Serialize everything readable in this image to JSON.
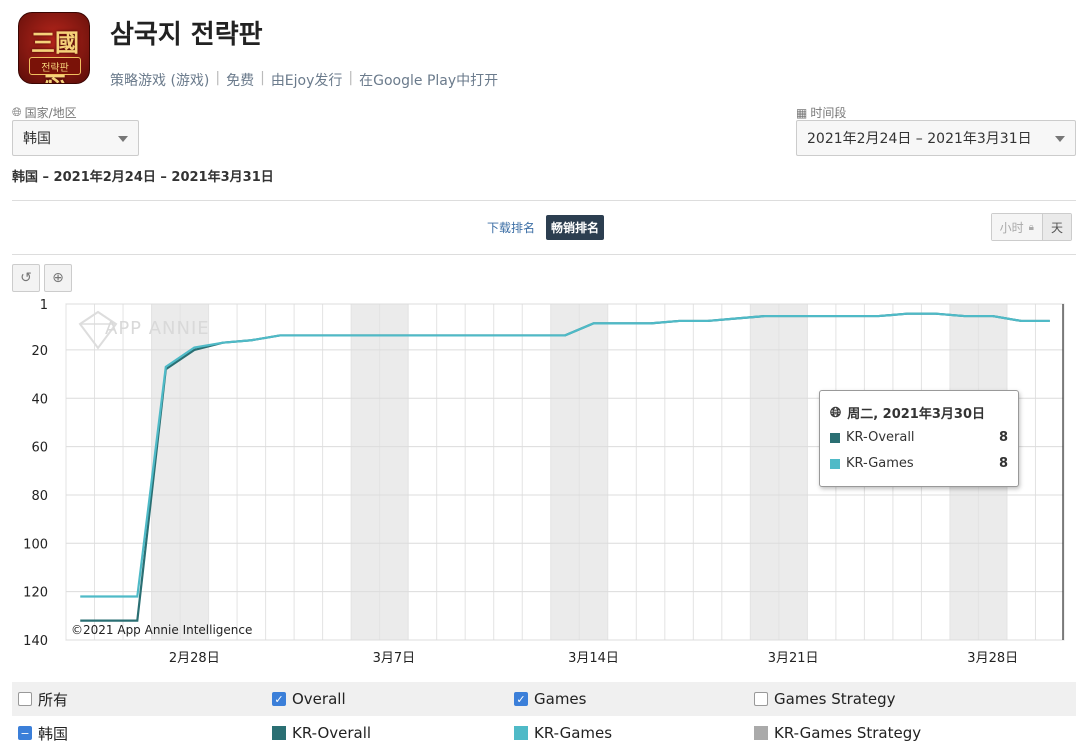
{
  "app": {
    "title": "삼국지 전략판",
    "icon_text": "三國志",
    "icon_sub": "전략판",
    "category": "策略游戏 (游戏)",
    "price": "免费",
    "publisher": "由Ejoy发行",
    "store_link": "在Google Play中打开",
    "separator": "|"
  },
  "filters": {
    "country_label": "国家/地区",
    "country_value": "韩国",
    "period_label": "时间段",
    "period_value": "2021年2月24日 – 2021年3月31日",
    "range_text": "韩国 – 2021年2月24日 – 2021年3月31日"
  },
  "tabs": {
    "download": "下载排名",
    "grossing": "畅销排名"
  },
  "granularity": {
    "hour": "小时",
    "day": "天"
  },
  "watermark": "APP ANNIE",
  "copyright": "©2021 App Annie Intelligence",
  "colors": {
    "overall": "#2a6f73",
    "games": "#4fbac7",
    "strategy": "#aaaaaa",
    "checkbox": "#3b7fd9"
  },
  "tooltip": {
    "date": "周二, 2021年3月30日",
    "rows": [
      {
        "name": "KR-Overall",
        "value": "8"
      },
      {
        "name": "KR-Games",
        "value": "8"
      }
    ]
  },
  "legend": {
    "row1": [
      "所有",
      "Overall",
      "Games",
      "Games Strategy"
    ],
    "row2": [
      "韩国",
      "KR-Overall",
      "KR-Games",
      "KR-Games Strategy"
    ]
  },
  "chart_data": {
    "type": "line",
    "ylim": [
      1,
      140
    ],
    "y_reversed": true,
    "y_ticks": [
      1,
      20,
      40,
      60,
      80,
      100,
      120,
      140
    ],
    "x_tick_labels": [
      "2月28日",
      "3月7日",
      "3月14日",
      "3月21日",
      "3月28日"
    ],
    "x": [
      "2021-02-24",
      "2021-02-25",
      "2021-02-26",
      "2021-02-27",
      "2021-02-28",
      "2021-03-01",
      "2021-03-02",
      "2021-03-03",
      "2021-03-04",
      "2021-03-05",
      "2021-03-06",
      "2021-03-07",
      "2021-03-08",
      "2021-03-09",
      "2021-03-10",
      "2021-03-11",
      "2021-03-12",
      "2021-03-13",
      "2021-03-14",
      "2021-03-15",
      "2021-03-16",
      "2021-03-17",
      "2021-03-18",
      "2021-03-19",
      "2021-03-20",
      "2021-03-21",
      "2021-03-22",
      "2021-03-23",
      "2021-03-24",
      "2021-03-25",
      "2021-03-26",
      "2021-03-27",
      "2021-03-28",
      "2021-03-29",
      "2021-03-30"
    ],
    "series": [
      {
        "name": "KR-Overall",
        "values": [
          132,
          132,
          132,
          28,
          20,
          17,
          16,
          14,
          14,
          14,
          14,
          14,
          14,
          14,
          14,
          14,
          14,
          14,
          9,
          9,
          9,
          8,
          8,
          7,
          6,
          6,
          6,
          6,
          6,
          5,
          5,
          6,
          6,
          8,
          8
        ]
      },
      {
        "name": "KR-Games",
        "values": [
          122,
          122,
          122,
          27,
          19,
          17,
          16,
          14,
          14,
          14,
          14,
          14,
          14,
          14,
          14,
          14,
          14,
          14,
          9,
          9,
          9,
          8,
          8,
          7,
          6,
          6,
          6,
          6,
          6,
          5,
          5,
          6,
          6,
          8,
          8
        ]
      }
    ],
    "weekend_shading": true,
    "grid": true,
    "legend_position": "bottom"
  }
}
